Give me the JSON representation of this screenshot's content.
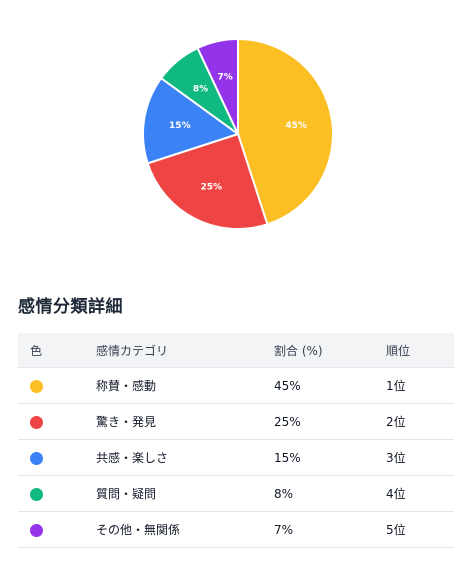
{
  "chart_data": {
    "type": "pie",
    "slices": [
      {
        "label": "45%",
        "value": 45,
        "color": "#fbbf24"
      },
      {
        "label": "25%",
        "value": 25,
        "color": "#ef4444"
      },
      {
        "label": "15%",
        "value": 15,
        "color": "#3b82f6"
      },
      {
        "label": "8%",
        "value": 8,
        "color": "#10b981"
      },
      {
        "label": "7%",
        "value": 7,
        "color": "#9333ea"
      }
    ]
  },
  "section": {
    "title": "感情分類詳細"
  },
  "table": {
    "headers": [
      "色",
      "感情カテゴリ",
      "割合 (%)",
      "順位"
    ],
    "rows": [
      {
        "color": "#fbbf24",
        "category": "称賛・感動",
        "percent": "45%",
        "rank": "1位"
      },
      {
        "color": "#ef4444",
        "category": "驚き・発見",
        "percent": "25%",
        "rank": "2位"
      },
      {
        "color": "#3b82f6",
        "category": "共感・楽しさ",
        "percent": "15%",
        "rank": "3位"
      },
      {
        "color": "#10b981",
        "category": "質問・疑問",
        "percent": "8%",
        "rank": "4位"
      },
      {
        "color": "#9333ea",
        "category": "その他・無関係",
        "percent": "7%",
        "rank": "5位"
      }
    ]
  }
}
